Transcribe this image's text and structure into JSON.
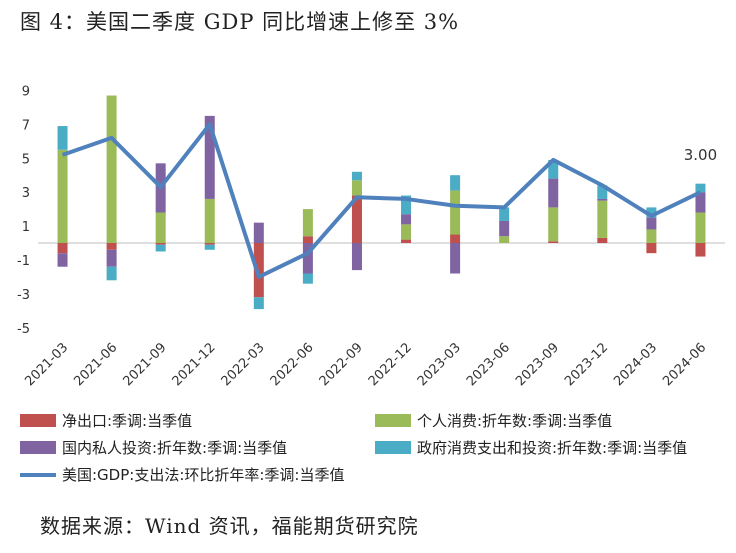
{
  "title": "图 4：美国二季度 GDP 同比增速上修至 3%",
  "source": "数据来源：Wind 资讯，福能期货研究院",
  "chart_data": {
    "type": "bar",
    "stacked": true,
    "categories": [
      "2021-03",
      "2021-06",
      "2021-09",
      "2021-12",
      "2022-03",
      "2022-06",
      "2022-09",
      "2022-12",
      "2023-03",
      "2023-06",
      "2023-09",
      "2023-12",
      "2024-03",
      "2024-06"
    ],
    "ylim": [
      -5,
      9
    ],
    "yticks": [
      -5,
      -3,
      -1,
      1,
      3,
      5,
      7,
      9
    ],
    "series": [
      {
        "name": "净出口:季调:当季值",
        "kind": "bar",
        "color": "#c0504d",
        "values": [
          -0.6,
          -0.4,
          -0.1,
          -0.1,
          -3.2,
          0.4,
          2.8,
          0.2,
          0.5,
          0.0,
          0.1,
          0.3,
          -0.6,
          -0.8
        ]
      },
      {
        "name": "个人消费:折年数:季调:当季值",
        "kind": "bar",
        "color": "#9bbb59",
        "values": [
          5.5,
          8.7,
          1.8,
          2.6,
          0.0,
          1.6,
          0.9,
          0.9,
          2.6,
          0.4,
          2.0,
          2.2,
          0.8,
          1.8
        ]
      },
      {
        "name": "国内私人投资:折年数:季调:当季值",
        "kind": "bar",
        "color": "#8064a2",
        "values": [
          -0.8,
          -1.0,
          2.9,
          4.9,
          1.2,
          -1.8,
          -1.6,
          0.6,
          -1.8,
          0.9,
          1.7,
          0.1,
          0.7,
          1.2
        ]
      },
      {
        "name": "政府消费支出和投资:折年数:季调:当季值",
        "kind": "bar",
        "color": "#4bacc6",
        "values": [
          1.4,
          -0.8,
          -0.4,
          -0.3,
          -0.7,
          -0.6,
          0.5,
          1.1,
          0.9,
          0.8,
          1.1,
          0.8,
          0.6,
          0.5
        ]
      },
      {
        "name": "美国:GDP:支出法:环比折年率:季调:当季值",
        "kind": "line",
        "color": "#4f81bd",
        "values": [
          5.2,
          6.2,
          3.3,
          7.0,
          -2.0,
          -0.6,
          2.7,
          2.6,
          2.2,
          2.1,
          4.9,
          3.4,
          1.6,
          3.0
        ]
      }
    ],
    "annotations": [
      {
        "category": "2024-06",
        "text": "3.00"
      }
    ]
  },
  "legend": [
    {
      "label": "净出口:季调:当季值",
      "color": "#c0504d",
      "shape": "box"
    },
    {
      "label": "个人消费:折年数:季调:当季值",
      "color": "#9bbb59",
      "shape": "box"
    },
    {
      "label": "国内私人投资:折年数:季调:当季值",
      "color": "#8064a2",
      "shape": "box"
    },
    {
      "label": "政府消费支出和投资:折年数:季调:当季值",
      "color": "#4bacc6",
      "shape": "box"
    },
    {
      "label": "美国:GDP:支出法:环比折年率:季调:当季值",
      "color": "#4f81bd",
      "shape": "line"
    }
  ]
}
